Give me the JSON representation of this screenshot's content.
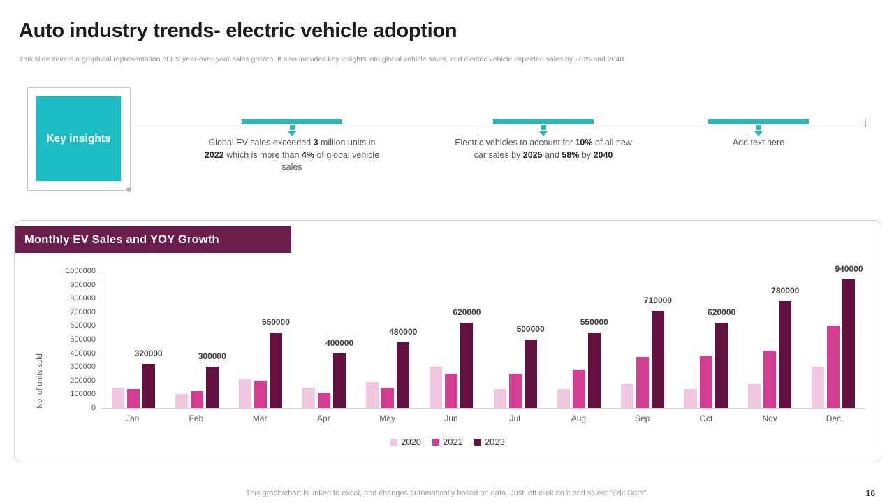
{
  "slide": {
    "title": "Auto industry trends- electric vehicle adoption",
    "subtitle": "This slide covers a graphical representation of EV year-over-year sales growth.  It also includes key insights into global vehicle sales, and electric vehicle expected sales by 2025 and 2040.",
    "footer": "This graph/chart is linked to excel, and changes automatically based on data. Just left click on it and select “Edit Data”.",
    "page_number": "16"
  },
  "key_insights": {
    "label": "Key insights",
    "items": [
      {
        "segments": [
          {
            "text": "Global EV sales exceeded ",
            "bold": false
          },
          {
            "text": "3",
            "bold": true
          },
          {
            "text": " million units in ",
            "bold": false
          },
          {
            "text": "2022",
            "bold": true
          },
          {
            "text": " which is more than ",
            "bold": false
          },
          {
            "text": "4%",
            "bold": true
          },
          {
            "text": " of global vehicle sales",
            "bold": false
          }
        ]
      },
      {
        "segments": [
          {
            "text": "Electric vehicles to account for ",
            "bold": false
          },
          {
            "text": "10%",
            "bold": true
          },
          {
            "text": " of all new car sales by ",
            "bold": false
          },
          {
            "text": "2025",
            "bold": true
          },
          {
            "text": " and ",
            "bold": false
          },
          {
            "text": "58%",
            "bold": true
          },
          {
            "text": " by ",
            "bold": false
          },
          {
            "text": "2040",
            "bold": true
          }
        ]
      },
      {
        "segments": [
          {
            "text": "Add text here",
            "bold": false
          }
        ]
      }
    ]
  },
  "chart": {
    "header": "Monthly EV Sales and YOY Growth"
  },
  "chart_data": {
    "type": "bar",
    "title": "Monthly EV Sales and YOY Growth",
    "categories": [
      "Jan",
      "Feb",
      "Mar",
      "Apr",
      "May",
      "Jun",
      "Jul",
      "Aug",
      "Sep",
      "Oct",
      "Nov",
      "Dec"
    ],
    "series": [
      {
        "name": "2020",
        "color": "#f1c6e0",
        "values": [
          150000,
          100000,
          215000,
          150000,
          190000,
          300000,
          140000,
          140000,
          180000,
          140000,
          180000,
          300000
        ]
      },
      {
        "name": "2022",
        "color": "#d33d92",
        "values": [
          140000,
          120000,
          200000,
          110000,
          150000,
          250000,
          250000,
          280000,
          370000,
          380000,
          420000,
          600000
        ]
      },
      {
        "name": "2023",
        "color": "#63123f",
        "data_labels": true,
        "values": [
          320000,
          300000,
          550000,
          400000,
          480000,
          620000,
          500000,
          550000,
          710000,
          620000,
          780000,
          940000
        ]
      }
    ],
    "ylabel": "No. of units sold",
    "ylim": [
      0,
      1000000
    ],
    "ytick_step": 100000,
    "grid": false,
    "legend_position": "bottom"
  },
  "colors": {
    "accent_teal": "#1cbcc3",
    "accent_maroon": "#6b1d4b",
    "bar_2020": "#f1c6e0",
    "bar_2022": "#d33d92",
    "bar_2023": "#63123f"
  }
}
